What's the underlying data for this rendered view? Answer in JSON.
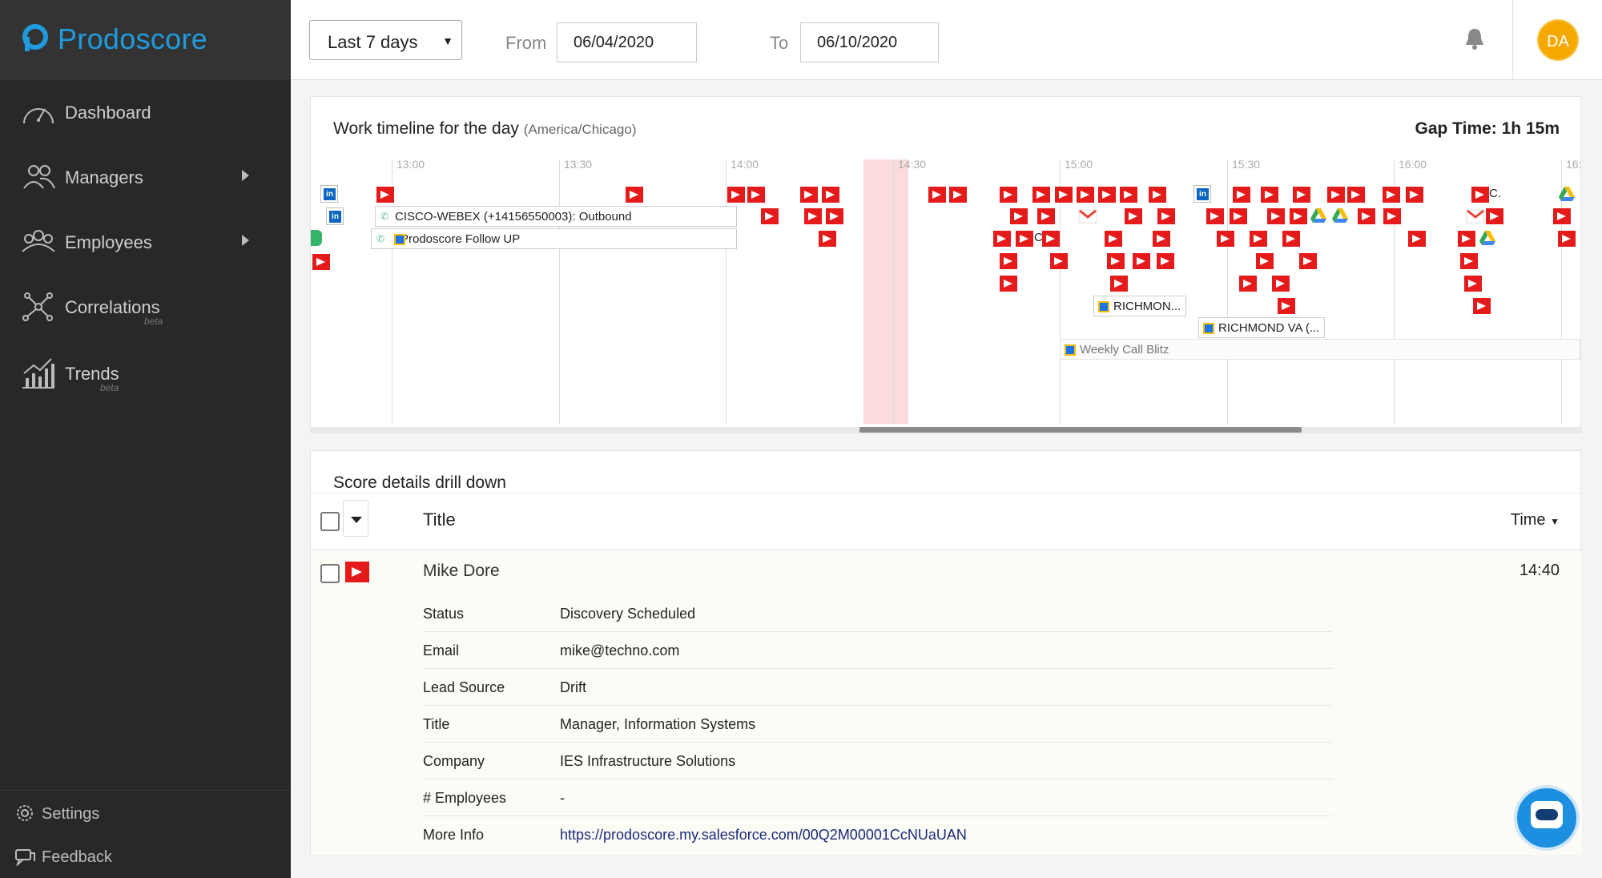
{
  "app": {
    "name": "Prodoscore",
    "brand_color": "#1f9bde"
  },
  "sidebar": {
    "items": [
      {
        "label": "Dashboard",
        "icon": "gauge-icon"
      },
      {
        "label": "Managers",
        "icon": "managers-icon",
        "has_submenu": true
      },
      {
        "label": "Employees",
        "icon": "employees-icon",
        "has_submenu": true
      },
      {
        "label": "Correlations",
        "icon": "network-icon",
        "badge": "beta"
      },
      {
        "label": "Trends",
        "icon": "bar-chart-icon",
        "badge": "beta"
      }
    ],
    "bottom": [
      {
        "label": "Settings",
        "icon": "gear-icon"
      },
      {
        "label": "Feedback",
        "icon": "feedback-icon"
      }
    ]
  },
  "header": {
    "range": "Last 7 days",
    "from_label": "From",
    "from_value": "06/04/2020",
    "to_label": "To",
    "to_value": "06/10/2020",
    "avatar_initials": "DA"
  },
  "timeline": {
    "title": "Work timeline for the day",
    "timezone": "(America/Chicago)",
    "gap_time": "Gap Time: 1h 15m",
    "ticks": [
      "13:00",
      "13:30",
      "14:00",
      "14:30",
      "15:00",
      "15:30",
      "16:00",
      "16:"
    ],
    "bars": {
      "webex": "CISCO-WEBEX (+14156550003): Outbound",
      "follow_up": "Prodoscore Follow UP",
      "richmond1": "RICHMON...",
      "richmond2": "RICHMOND VA (...",
      "weekly": "Weekly Call Blitz",
      "c1": "C",
      "c2": "C."
    }
  },
  "score": {
    "title": "Score details drill down",
    "col_title": "Title",
    "col_time": "Time",
    "row": {
      "name": "Mike Dore",
      "time": "14:40",
      "details": [
        {
          "key": "Status",
          "value": "Discovery Scheduled"
        },
        {
          "key": "Email",
          "value": "mike@techno.com"
        },
        {
          "key": "Lead Source",
          "value": "Drift"
        },
        {
          "key": "Title",
          "value": "Manager, Information Systems"
        },
        {
          "key": "Company",
          "value": "IES Infrastructure Solutions"
        },
        {
          "key": "# Employees",
          "value": "-"
        },
        {
          "key": "More Info",
          "value": "https://prodoscore.my.salesforce.com/00Q2M00001CcNUaUAN"
        }
      ]
    }
  }
}
